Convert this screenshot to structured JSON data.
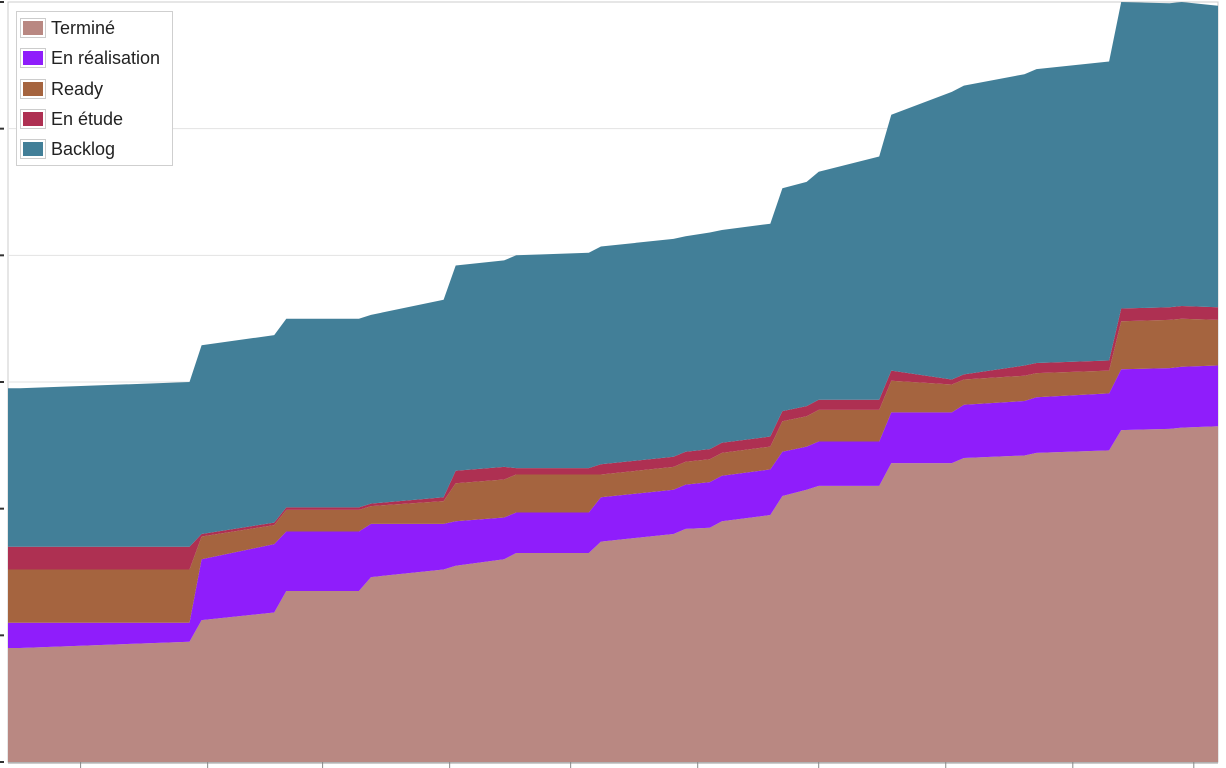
{
  "chart_data": {
    "type": "area",
    "stacked": true,
    "title": "",
    "xlabel": "",
    "ylabel": "",
    "grid": true,
    "legend_position": "top-left",
    "x": [
      0,
      1,
      15,
      16,
      22,
      23,
      29,
      30,
      36,
      37,
      41,
      42,
      48,
      49,
      55,
      56,
      58,
      59,
      63,
      64,
      66,
      67,
      72,
      73,
      78,
      79,
      84,
      85,
      91,
      92,
      96,
      97,
      100
    ],
    "ylim": [
      0,
      600
    ],
    "series": [
      {
        "name": "Terminé",
        "color": "#b98882",
        "values": [
          90,
          90,
          95,
          112,
          118,
          135,
          135,
          146,
          152,
          155,
          160,
          165,
          165,
          174,
          180,
          184,
          185,
          190,
          195,
          210,
          215,
          218,
          218,
          236,
          236,
          240,
          242,
          244,
          246,
          262,
          263,
          264,
          265
        ]
      },
      {
        "name": "En réalisation",
        "color": "#8f1dfb",
        "values": [
          20,
          20,
          15,
          48,
          54,
          47,
          47,
          42,
          36,
          35,
          33,
          32,
          32,
          35,
          35,
          35,
          36,
          36,
          36,
          35,
          34,
          35,
          35,
          40,
          40,
          42,
          43,
          44,
          45,
          48,
          48,
          48,
          48
        ]
      },
      {
        "name": "Ready",
        "color": "#a5643f",
        "values": [
          42,
          42,
          42,
          18,
          15,
          17,
          17,
          14,
          18,
          30,
          30,
          30,
          30,
          18,
          18,
          18,
          18,
          18,
          18,
          24,
          24,
          25,
          25,
          25,
          22,
          20,
          20,
          19,
          18,
          38,
          38,
          38,
          36
        ]
      },
      {
        "name": "En étude",
        "color": "#ae3052",
        "values": [
          18,
          18,
          18,
          2,
          2,
          2,
          2,
          2,
          3,
          10,
          10,
          5,
          5,
          8,
          8,
          8,
          8,
          8,
          8,
          8,
          8,
          8,
          8,
          8,
          4,
          4,
          8,
          8,
          8,
          10,
          10,
          10,
          10
        ]
      },
      {
        "name": "Backlog",
        "color": "#427f98",
        "values": [
          125,
          125,
          130,
          149,
          148,
          149,
          149,
          149,
          156,
          162,
          163,
          168,
          170,
          172,
          172,
          170,
          171,
          168,
          168,
          176,
          177,
          180,
          192,
          202,
          227,
          228,
          230,
          232,
          236,
          242,
          240,
          240,
          238
        ]
      }
    ]
  },
  "legend": {
    "items": [
      {
        "label": "Terminé",
        "color": "#b98882"
      },
      {
        "label": "En réalisation",
        "color": "#8f1dfb"
      },
      {
        "label": "Ready",
        "color": "#a5643f"
      },
      {
        "label": "En étude",
        "color": "#ae3052"
      },
      {
        "label": "Backlog",
        "color": "#427f98"
      }
    ]
  }
}
